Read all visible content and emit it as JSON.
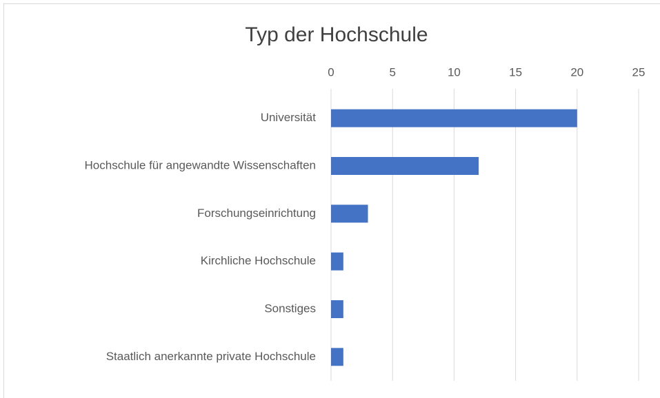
{
  "chart_data": {
    "type": "bar",
    "title": "Typ der Hochschule",
    "categories": [
      "Universität",
      "Hochschule für angewandte Wissenschaften",
      "Forschungseinrichtung",
      "Kirchliche Hochschule",
      "Sonstiges",
      "Staatlich anerkannte private Hochschule"
    ],
    "values": [
      20,
      12,
      3,
      1,
      1,
      1
    ],
    "color": "#4472c4",
    "xlim": [
      0,
      25
    ],
    "xticks": [
      0,
      5,
      10,
      15,
      20,
      25
    ],
    "grid": true
  }
}
